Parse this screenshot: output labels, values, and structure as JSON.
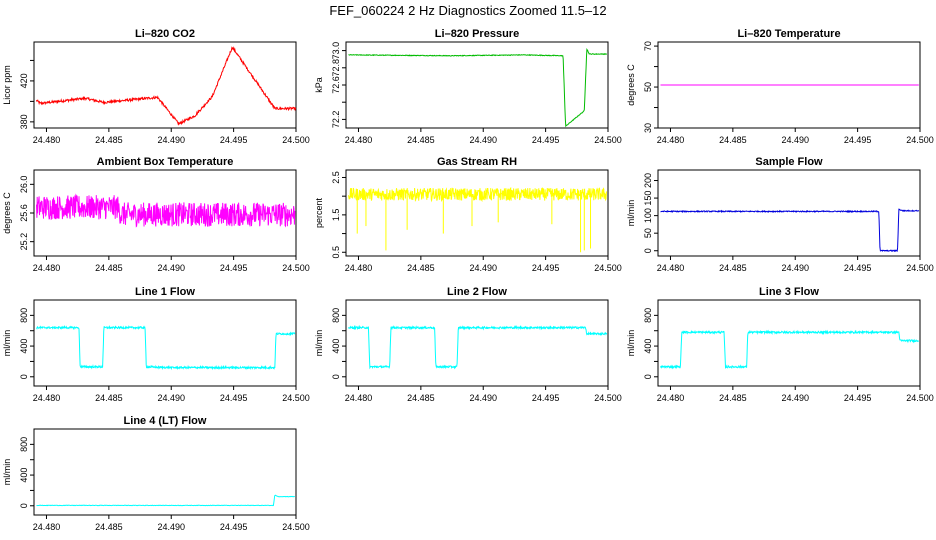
{
  "figure": {
    "title": "FEF_060224  2 Hz Diagnostics Zoomed 11.5–12"
  },
  "chart_data": [
    {
      "type": "line",
      "title": "Li–820 CO2",
      "xlabel": "",
      "ylabel": "Licor ppm",
      "xlim": [
        24.479,
        24.5
      ],
      "ylim": [
        374,
        458
      ],
      "xticks": [
        "24.480",
        "24.485",
        "24.490",
        "24.495",
        "24.500"
      ],
      "yticks": [
        380,
        400,
        420,
        440,
        460
      ],
      "ytick_labels": [
        "380",
        "",
        "420",
        "",
        "460"
      ],
      "grid": false,
      "series": [
        {
          "color": "#ff0000",
          "noise": 1.2,
          "density": 600,
          "x": [
            24.4792,
            24.4795,
            24.4831,
            24.4846,
            24.4889,
            24.4906,
            24.4919,
            24.4933,
            24.4949,
            24.4983,
            24.5
          ],
          "y": [
            401,
            398,
            403,
            399,
            404,
            378,
            386,
            405,
            453,
            393,
            393
          ]
        }
      ]
    },
    {
      "type": "line",
      "title": "Li–820 Pressure",
      "xlabel": "",
      "ylabel": "kPa",
      "xlim": [
        24.479,
        24.5
      ],
      "ylim": [
        72.1,
        73.1
      ],
      "xticks": [
        "24.480",
        "24.485",
        "24.490",
        "24.495",
        "24.500"
      ],
      "yticks": [
        72.2,
        72.4,
        72.6,
        72.8,
        73.0
      ],
      "ytick_labels": [
        "72.2",
        "",
        "72.6",
        "72.8",
        "73.0"
      ],
      "grid": false,
      "series": [
        {
          "color": "#00bb00",
          "noise": 0.004,
          "density": 600,
          "x": [
            24.4792,
            24.4875,
            24.4932,
            24.4964,
            24.4966,
            24.4981,
            24.4983,
            24.4985,
            24.4999
          ],
          "y": [
            72.95,
            72.94,
            72.95,
            72.94,
            72.12,
            72.3,
            73.02,
            72.96,
            72.96
          ]
        }
      ]
    },
    {
      "type": "line",
      "title": "Li–820 Temperature",
      "xlabel": "",
      "ylabel": "degrees C",
      "xlim": [
        24.479,
        24.5
      ],
      "ylim": [
        30,
        72
      ],
      "xticks": [
        "24.480",
        "24.485",
        "24.490",
        "24.495",
        "24.500"
      ],
      "yticks": [
        30,
        40,
        50,
        60,
        70
      ],
      "ytick_labels": [
        "30",
        "",
        "50",
        "",
        "70"
      ],
      "grid": false,
      "series": [
        {
          "color": "#ff00ff",
          "noise": 0,
          "density": 2,
          "x": [
            24.4792,
            24.4999
          ],
          "y": [
            51,
            51
          ]
        }
      ]
    },
    {
      "type": "line",
      "title": "Ambient Box Temperature",
      "xlabel": "",
      "ylabel": "degrees C",
      "xlim": [
        24.479,
        24.5
      ],
      "ylim": [
        25.0,
        26.2
      ],
      "xticks": [
        "24.480",
        "24.485",
        "24.490",
        "24.495",
        "24.500"
      ],
      "yticks": [
        25.2,
        25.6,
        26.0
      ],
      "ytick_labels": [
        "25.2",
        "25.6",
        "26.0"
      ],
      "grid": false,
      "series": [
        {
          "color": "#ff00ff",
          "noise": 0.17,
          "density": 700,
          "x": [
            24.4792,
            24.4857,
            24.486,
            24.4999
          ],
          "y": [
            25.68,
            25.68,
            25.58,
            25.58
          ]
        }
      ]
    },
    {
      "type": "line",
      "title": "Gas Stream RH",
      "xlabel": "",
      "ylabel": "percent",
      "xlim": [
        24.479,
        24.5
      ],
      "ylim": [
        0.4,
        2.7
      ],
      "xticks": [
        "24.480",
        "24.485",
        "24.490",
        "24.495",
        "24.500"
      ],
      "yticks": [
        0.5,
        1.0,
        1.5,
        2.0,
        2.5
      ],
      "ytick_labels": [
        "0.5",
        "",
        "1.5",
        "",
        "2.5"
      ],
      "grid": false,
      "series": [
        {
          "color": "#ffff00",
          "noise": 0.17,
          "density": 700,
          "x": [
            24.4792,
            24.4999
          ],
          "y": [
            2.05,
            2.05
          ]
        }
      ],
      "spikes": {
        "x": [
          24.4799,
          24.4806,
          24.4822,
          24.4839,
          24.4868,
          24.4891,
          24.4912,
          24.4955,
          24.4978,
          24.4981,
          24.4986
        ],
        "y": [
          1.0,
          1.2,
          0.55,
          1.1,
          1.0,
          1.2,
          1.3,
          1.25,
          0.5,
          0.55,
          0.6
        ]
      }
    },
    {
      "type": "line",
      "title": "Sample Flow",
      "xlabel": "",
      "ylabel": "ml/min",
      "xlim": [
        24.479,
        24.5
      ],
      "ylim": [
        -15,
        230
      ],
      "xticks": [
        "24.480",
        "24.485",
        "24.490",
        "24.495",
        "24.500"
      ],
      "yticks": [
        0,
        50,
        100,
        150,
        200
      ],
      "ytick_labels": [
        "0",
        "50",
        "100",
        "150",
        "200"
      ],
      "grid": false,
      "series": [
        {
          "color": "#0000dd",
          "noise": 1.5,
          "density": 600,
          "x": [
            24.4792,
            24.4967,
            24.4968,
            24.4982,
            24.4983,
            24.4986,
            24.4999
          ],
          "y": [
            112,
            112,
            0,
            0,
            118,
            114,
            114
          ]
        }
      ]
    },
    {
      "type": "line",
      "title": "Line 1 Flow",
      "xlabel": "",
      "ylabel": "ml/min",
      "xlim": [
        24.479,
        24.5
      ],
      "ylim": [
        -120,
        1000
      ],
      "xticks": [
        "24.480",
        "24.485",
        "24.490",
        "24.495",
        "24.500"
      ],
      "yticks": [
        0,
        200,
        400,
        600,
        800
      ],
      "ytick_labels": [
        "0",
        "",
        "400",
        "",
        "800"
      ],
      "grid": false,
      "series": [
        {
          "color": "#00ffff",
          "noise": 12,
          "density": 700,
          "x": [
            24.4792,
            24.4826,
            24.4827,
            24.4845,
            24.4846,
            24.4879,
            24.488,
            24.4897,
            24.4983,
            24.4984,
            24.4999
          ],
          "y": [
            640,
            640,
            130,
            130,
            640,
            640,
            130,
            120,
            120,
            560,
            560
          ]
        }
      ]
    },
    {
      "type": "line",
      "title": "Line 2 Flow",
      "xlabel": "",
      "ylabel": "ml/min",
      "xlim": [
        24.479,
        24.5
      ],
      "ylim": [
        -120,
        1000
      ],
      "xticks": [
        "24.480",
        "24.485",
        "24.490",
        "24.495",
        "24.500"
      ],
      "yticks": [
        0,
        200,
        400,
        600,
        800
      ],
      "ytick_labels": [
        "0",
        "",
        "400",
        "",
        "800"
      ],
      "grid": false,
      "series": [
        {
          "color": "#00ffff",
          "noise": 12,
          "density": 700,
          "x": [
            24.4792,
            24.4808,
            24.4809,
            24.4825,
            24.4826,
            24.4861,
            24.4862,
            24.4879,
            24.488,
            24.4982,
            24.4983,
            24.4999
          ],
          "y": [
            640,
            640,
            130,
            130,
            640,
            640,
            130,
            130,
            640,
            640,
            560,
            560
          ]
        }
      ]
    },
    {
      "type": "line",
      "title": "Line 3 Flow",
      "xlabel": "",
      "ylabel": "ml/min",
      "xlim": [
        24.479,
        24.5
      ],
      "ylim": [
        -120,
        1000
      ],
      "xticks": [
        "24.480",
        "24.485",
        "24.490",
        "24.495",
        "24.500"
      ],
      "yticks": [
        0,
        200,
        400,
        600,
        800
      ],
      "ytick_labels": [
        "0",
        "",
        "400",
        "",
        "800"
      ],
      "grid": false,
      "series": [
        {
          "color": "#00ffff",
          "noise": 12,
          "density": 700,
          "x": [
            24.4792,
            24.4808,
            24.4809,
            24.4843,
            24.4844,
            24.4861,
            24.4862,
            24.4983,
            24.4984,
            24.4999
          ],
          "y": [
            130,
            130,
            580,
            580,
            130,
            130,
            580,
            580,
            470,
            470
          ]
        }
      ]
    },
    {
      "type": "line",
      "title": "Line 4 (LT) Flow",
      "xlabel": "",
      "ylabel": "ml/min",
      "xlim": [
        24.479,
        24.5
      ],
      "ylim": [
        -120,
        1000
      ],
      "xticks": [
        "24.480",
        "24.485",
        "24.490",
        "24.495",
        "24.500"
      ],
      "yticks": [
        0,
        200,
        400,
        600,
        800
      ],
      "ytick_labels": [
        "0",
        "",
        "400",
        "",
        "800"
      ],
      "grid": false,
      "series": [
        {
          "color": "#00ffff",
          "noise": 3,
          "density": 400,
          "x": [
            24.4792,
            24.4982,
            24.4983,
            24.4986,
            24.4999
          ],
          "y": [
            5,
            5,
            140,
            120,
            120
          ]
        }
      ]
    }
  ]
}
